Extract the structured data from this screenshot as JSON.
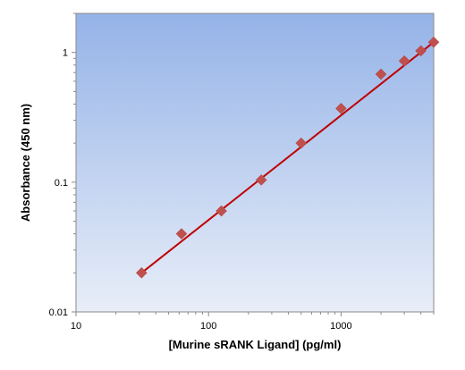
{
  "chart_data": {
    "type": "scatter",
    "title": "",
    "xlabel": "[Murine sRANK Ligand] (pg/ml)",
    "ylabel": "Absorbance (450 nm)",
    "xscale": "log",
    "yscale": "log",
    "xlim": [
      10,
      5000
    ],
    "ylim": [
      0.01,
      2
    ],
    "x_ticks": [
      10,
      100,
      1000
    ],
    "x_tick_labels": [
      "10",
      "100",
      "1000"
    ],
    "y_ticks": [
      0.01,
      0.1,
      1
    ],
    "y_tick_labels": [
      "0.01",
      "0.1",
      "1"
    ],
    "grid": false,
    "legend": "none",
    "series": [
      {
        "marker": "diamond",
        "color": "#c0504d",
        "x": [
          31.25,
          62.5,
          125,
          250,
          500,
          1000,
          2000,
          3000,
          4000,
          5000
        ],
        "y": [
          0.02,
          0.04,
          0.06,
          0.104,
          0.2,
          0.37,
          0.68,
          0.86,
          1.03,
          1.2
        ]
      }
    ],
    "fit_line": {
      "color": "#c00000",
      "x": [
        31.25,
        5000
      ],
      "y": [
        0.02,
        1.2
      ]
    },
    "background_gradient": [
      "#95b3e8",
      "#e8eef8"
    ]
  }
}
